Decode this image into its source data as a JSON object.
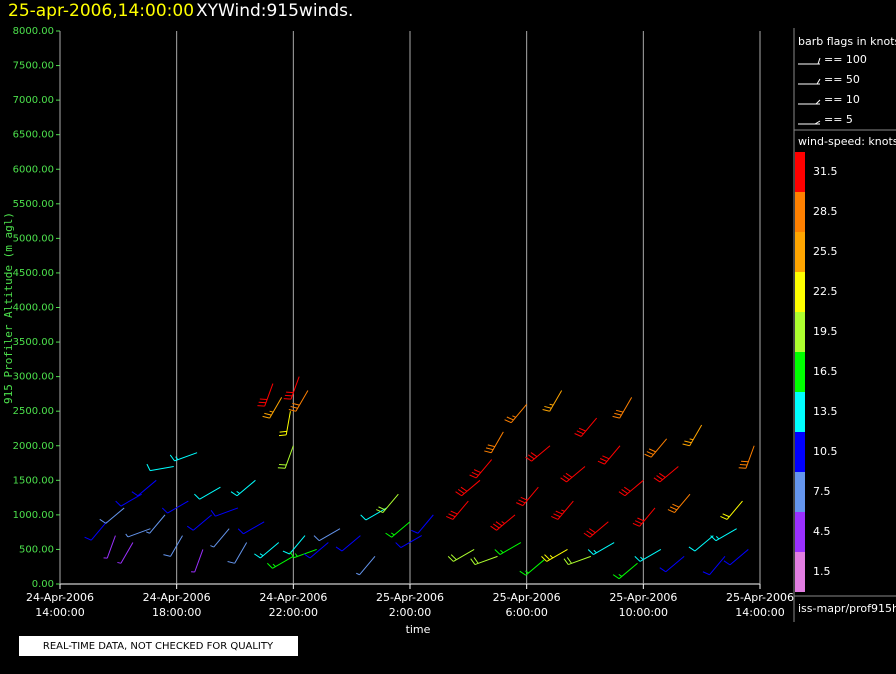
{
  "chart_data": {
    "type": "wind-barb",
    "title": "25-apr-2006,14:00:00",
    "subtitle": "XYWind:915winds.",
    "x_label": "time",
    "y_label": "915 Profiler Altitude (m agl)",
    "notice": "REAL-TIME DATA, NOT CHECKED FOR QUALITY",
    "source": "iss-mapr/prof915h",
    "xlim": [
      0,
      24
    ],
    "xticks": [
      {
        "value": 0,
        "label": [
          "24-Apr-2006",
          "14:00:00"
        ]
      },
      {
        "value": 4,
        "label": [
          "24-Apr-2006",
          "18:00:00"
        ]
      },
      {
        "value": 8,
        "label": [
          "24-Apr-2006",
          "22:00:00"
        ]
      },
      {
        "value": 12,
        "label": [
          "25-Apr-2006",
          "2:00:00"
        ]
      },
      {
        "value": 16,
        "label": [
          "25-Apr-2006",
          "6:00:00"
        ]
      },
      {
        "value": 20,
        "label": [
          "25-Apr-2006",
          "10:00:00"
        ]
      },
      {
        "value": 24,
        "label": [
          "25-Apr-2006",
          "14:00:00"
        ]
      }
    ],
    "ylim": [
      0,
      8000
    ],
    "yticks": [
      {
        "value": 0,
        "label": "0.00"
      },
      {
        "value": 500,
        "label": "500.00"
      },
      {
        "value": 1000,
        "label": "1000.00"
      },
      {
        "value": 1500,
        "label": "1500.00"
      },
      {
        "value": 2000,
        "label": "2000.00"
      },
      {
        "value": 2500,
        "label": "2500.00"
      },
      {
        "value": 3000,
        "label": "3000.00"
      },
      {
        "value": 3500,
        "label": "3500.00"
      },
      {
        "value": 4000,
        "label": "4000.00"
      },
      {
        "value": 4500,
        "label": "4500.00"
      },
      {
        "value": 5000,
        "label": "5000.00"
      },
      {
        "value": 5500,
        "label": "5500.00"
      },
      {
        "value": 6000,
        "label": "6000.00"
      },
      {
        "value": 6500,
        "label": "6500.00"
      },
      {
        "value": 7000,
        "label": "7000.00"
      },
      {
        "value": 7500,
        "label": "7500.00"
      },
      {
        "value": 8000,
        "label": "8000.00"
      }
    ],
    "grid": true,
    "barb_legend": {
      "title": "barb flags in knots",
      "labels": [
        "== 100",
        "== 50",
        "== 10",
        "== 5"
      ]
    },
    "colorbar": {
      "title": "wind-speed: knots",
      "levels": [
        31.5,
        28.5,
        25.5,
        22.5,
        19.5,
        16.5,
        13.5,
        10.5,
        7.5,
        4.5,
        1.5
      ],
      "colors": [
        "#ff0000",
        "#ff8000",
        "#ffa500",
        "#ffff00",
        "#adff2f",
        "#00ff00",
        "#00ffff",
        "#0000ff",
        "#6495ed",
        "#9b30ff",
        "#e27ee2"
      ]
    },
    "barbs": {
      "x": [
        1.6,
        1.9,
        2.2,
        2.5,
        2.8,
        3.1,
        3.3,
        3.6,
        3.9,
        4.2,
        4.4,
        4.7,
        4.9,
        5.2,
        5.5,
        5.8,
        6.1,
        6.4,
        6.7,
        7.0,
        7.3,
        7.6,
        7.9,
        8.2,
        8.5,
        8.0,
        7.5,
        8.0,
        8.4,
        8.8,
        9.2,
        9.6,
        10.3,
        10.8,
        11.2,
        11.6,
        12.0,
        12.4,
        12.8,
        14.0,
        14.4,
        14.8,
        15.2,
        15.6,
        16.0,
        16.4,
        16.8,
        17.2,
        17.6,
        18.0,
        18.4,
        18.8,
        19.2,
        19.6,
        20.0,
        20.4,
        20.8,
        21.2,
        21.6,
        22.0,
        14.2,
        15.0,
        15.8,
        16.6,
        17.4,
        18.2,
        19.0,
        19.8,
        20.6,
        21.4,
        22.4,
        22.8,
        23.2,
        23.6,
        23.8,
        23.4
      ],
      "y": [
        900,
        700,
        1100,
        600,
        1300,
        800,
        1500,
        1000,
        1700,
        700,
        1200,
        1900,
        500,
        1000,
        1400,
        800,
        1100,
        600,
        1500,
        900,
        2900,
        2700,
        2500,
        3000,
        2800,
        2000,
        600,
        400,
        700,
        500,
        600,
        800,
        700,
        400,
        1100,
        1300,
        900,
        700,
        1000,
        1200,
        1500,
        1800,
        2200,
        1000,
        2600,
        1400,
        2000,
        2800,
        1200,
        1700,
        2400,
        900,
        2000,
        2700,
        1500,
        1100,
        2100,
        1700,
        1300,
        2300,
        500,
        400,
        600,
        350,
        500,
        400,
        600,
        300,
        500,
        400,
        700,
        400,
        800,
        500,
        2000,
        1200
      ],
      "speed": [
        9,
        5,
        8,
        4,
        11,
        7,
        10,
        6,
        12,
        8,
        9,
        13,
        5,
        10,
        12,
        7,
        11,
        8,
        13,
        9,
        30,
        26,
        22,
        31,
        28,
        20,
        14,
        17,
        12,
        16,
        10,
        8,
        9,
        7,
        12,
        18,
        15,
        11,
        9,
        31,
        30,
        32,
        29,
        33,
        27,
        32,
        31,
        26,
        33,
        32,
        30,
        31,
        31,
        28,
        32,
        31,
        29,
        30,
        28,
        25,
        18,
        20,
        15,
        17,
        23,
        19,
        14,
        16,
        13,
        11,
        12,
        9,
        14,
        10,
        28,
        22
      ],
      "direction": [
        220,
        200,
        230,
        210,
        240,
        250,
        230,
        220,
        260,
        210,
        240,
        250,
        200,
        230,
        240,
        220,
        250,
        210,
        230,
        240,
        200,
        210,
        190,
        200,
        210,
        200,
        230,
        240,
        220,
        250,
        230,
        240,
        230,
        220,
        240,
        220,
        230,
        240,
        220,
        220,
        230,
        220,
        210,
        230,
        220,
        220,
        230,
        210,
        220,
        230,
        220,
        230,
        220,
        210,
        230,
        220,
        220,
        230,
        220,
        210,
        240,
        250,
        240,
        230,
        240,
        250,
        240,
        230,
        240,
        230,
        230,
        220,
        240,
        230,
        200,
        220
      ]
    }
  }
}
